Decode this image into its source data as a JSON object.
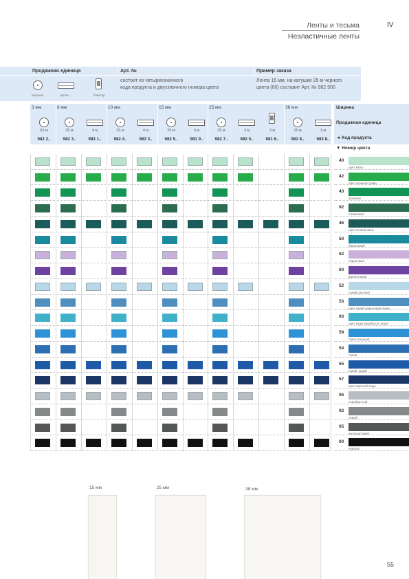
{
  "header": {
    "section": "IV",
    "title": "Ленты и тесьма",
    "subtitle": "Неэластичные ленты"
  },
  "infobar": {
    "sale_unit_label": "Продажная единица",
    "art_label": "Арт. №",
    "example_label": "Пример заказа",
    "art_text": [
      "состоит из четырехзначного",
      "кода продукта и двухзначного номера цвета"
    ],
    "example_text": [
      "Лента 15 мм, на катушке 25 м черного",
      "цвета (00) составит Арт. № 982 500"
    ],
    "icons": [
      {
        "icon": "spool-icon",
        "label": "катушка"
      },
      {
        "icon": "card-icon",
        "label": "купон"
      },
      {
        "icon": "blister-icon",
        "label": "блистер"
      }
    ]
  },
  "columns_header": {
    "widths": [
      "3 мм",
      "6 мм",
      "10 мм",
      "15 мм",
      "25 мм",
      "38 мм"
    ],
    "width_label": "Ширина",
    "sale_unit_label": "Продажная единица",
    "code_label": "◄ Код продукта",
    "color_label": "▼ Номер цвета"
  },
  "columns": [
    {
      "icon": "spool",
      "unit": "50 м",
      "code": "982 2.."
    },
    {
      "icon": "spool",
      "unit": "25 м",
      "code": "982 3.."
    },
    {
      "icon": "card",
      "unit": "4 м",
      "code": "983 1.."
    },
    {
      "icon": "spool",
      "unit": "25 м",
      "code": "982 4.."
    },
    {
      "icon": "card",
      "unit": "4 м",
      "code": "983 3.."
    },
    {
      "icon": "spool",
      "unit": "25 м",
      "code": "982 5.."
    },
    {
      "icon": "card",
      "unit": "3 м",
      "code": "981 9.."
    },
    {
      "icon": "spool",
      "unit": "25 м",
      "code": "982 7.."
    },
    {
      "icon": "card",
      "unit": "3 м",
      "code": "982 0.."
    },
    {
      "icon": "blister",
      "unit": "3 м",
      "code": "981 6.."
    },
    {
      "icon": "spool",
      "unit": "25 м",
      "code": "982 8.."
    },
    {
      "icon": "card",
      "unit": "3 м",
      "code": "983 8.."
    }
  ],
  "colors": [
    {
      "num": "40",
      "name": "цвет мяты",
      "hex": "#b9e4cb",
      "avail": [
        1,
        1,
        1,
        1,
        1,
        1,
        1,
        1,
        1,
        0,
        1,
        1
      ]
    },
    {
      "num": "42",
      "name": "цвет зеленой травы",
      "hex": "#27ab4b",
      "avail": [
        1,
        1,
        1,
        1,
        1,
        1,
        1,
        1,
        1,
        0,
        1,
        1
      ]
    },
    {
      "num": "43",
      "name": "зеленый",
      "hex": "#119455",
      "avail": [
        1,
        1,
        0,
        1,
        0,
        1,
        0,
        1,
        0,
        0,
        1,
        0
      ]
    },
    {
      "num": "92",
      "name": "оливковый",
      "hex": "#2d6d52",
      "avail": [
        1,
        1,
        0,
        1,
        0,
        1,
        0,
        1,
        0,
        0,
        1,
        0
      ]
    },
    {
      "num": "46",
      "name": "цвет еловой хвои",
      "hex": "#1d5b5b",
      "avail": [
        1,
        1,
        1,
        1,
        1,
        1,
        1,
        1,
        1,
        1,
        1,
        1
      ]
    },
    {
      "num": "50",
      "name": "бирюзовый",
      "hex": "#1a8b9f",
      "avail": [
        1,
        1,
        0,
        1,
        0,
        1,
        0,
        1,
        0,
        0,
        1,
        0
      ]
    },
    {
      "num": "62",
      "name": "сиреневый",
      "hex": "#c9b1dc",
      "avail": [
        1,
        1,
        0,
        1,
        0,
        1,
        0,
        1,
        0,
        0,
        1,
        0
      ]
    },
    {
      "num": "60",
      "name": "фиолетовый",
      "hex": "#6e42a0",
      "avail": [
        1,
        1,
        0,
        1,
        0,
        1,
        0,
        1,
        0,
        0,
        1,
        0
      ]
    },
    {
      "num": "52",
      "name": "синий светлый",
      "hex": "#b8d7e9",
      "avail": [
        1,
        1,
        1,
        1,
        1,
        1,
        1,
        1,
        1,
        0,
        1,
        1
      ]
    },
    {
      "num": "53",
      "name": "цвет синей джинсовой ткани",
      "hex": "#4f8fbf",
      "avail": [
        1,
        1,
        0,
        1,
        0,
        1,
        0,
        1,
        0,
        0,
        1,
        0
      ]
    },
    {
      "num": "93",
      "name": "цвет воды Карибского моря",
      "hex": "#3fb2c9",
      "avail": [
        1,
        1,
        0,
        1,
        0,
        1,
        0,
        1,
        0,
        0,
        1,
        0
      ]
    },
    {
      "num": "59",
      "name": "сине-стальной",
      "hex": "#2d93d6",
      "avail": [
        1,
        1,
        0,
        1,
        0,
        1,
        0,
        1,
        0,
        0,
        1,
        0
      ]
    },
    {
      "num": "54",
      "name": "синий",
      "hex": "#2d6fb3",
      "avail": [
        1,
        1,
        0,
        1,
        0,
        1,
        0,
        1,
        0,
        0,
        1,
        0
      ]
    },
    {
      "num": "55",
      "name": "синий, яркий",
      "hex": "#1f5aa9",
      "avail": [
        1,
        1,
        1,
        1,
        1,
        1,
        1,
        1,
        1,
        1,
        1,
        1
      ]
    },
    {
      "num": "57",
      "name": "цвет морской воды",
      "hex": "#1c3765",
      "avail": [
        1,
        1,
        1,
        1,
        1,
        1,
        1,
        1,
        1,
        1,
        1,
        1
      ]
    },
    {
      "num": "06",
      "name": "серебристый",
      "hex": "#b8bcc3",
      "avail": [
        1,
        1,
        1,
        1,
        1,
        1,
        1,
        1,
        1,
        0,
        1,
        1
      ]
    },
    {
      "num": "02",
      "name": "серый",
      "hex": "#86898a",
      "avail": [
        1,
        1,
        0,
        1,
        0,
        1,
        0,
        1,
        0,
        0,
        1,
        0
      ]
    },
    {
      "num": "05",
      "name": "антрацитовый",
      "hex": "#545755",
      "avail": [
        1,
        1,
        0,
        1,
        0,
        1,
        0,
        1,
        0,
        0,
        1,
        0
      ]
    },
    {
      "num": "00",
      "name": "черный",
      "hex": "#111111",
      "avail": [
        1,
        1,
        1,
        1,
        1,
        1,
        1,
        1,
        1,
        0,
        1,
        1
      ]
    }
  ],
  "samples": [
    {
      "label": "15 мм"
    },
    {
      "label": "25 мм"
    },
    {
      "label": "38 мм"
    }
  ],
  "page_number": "55"
}
